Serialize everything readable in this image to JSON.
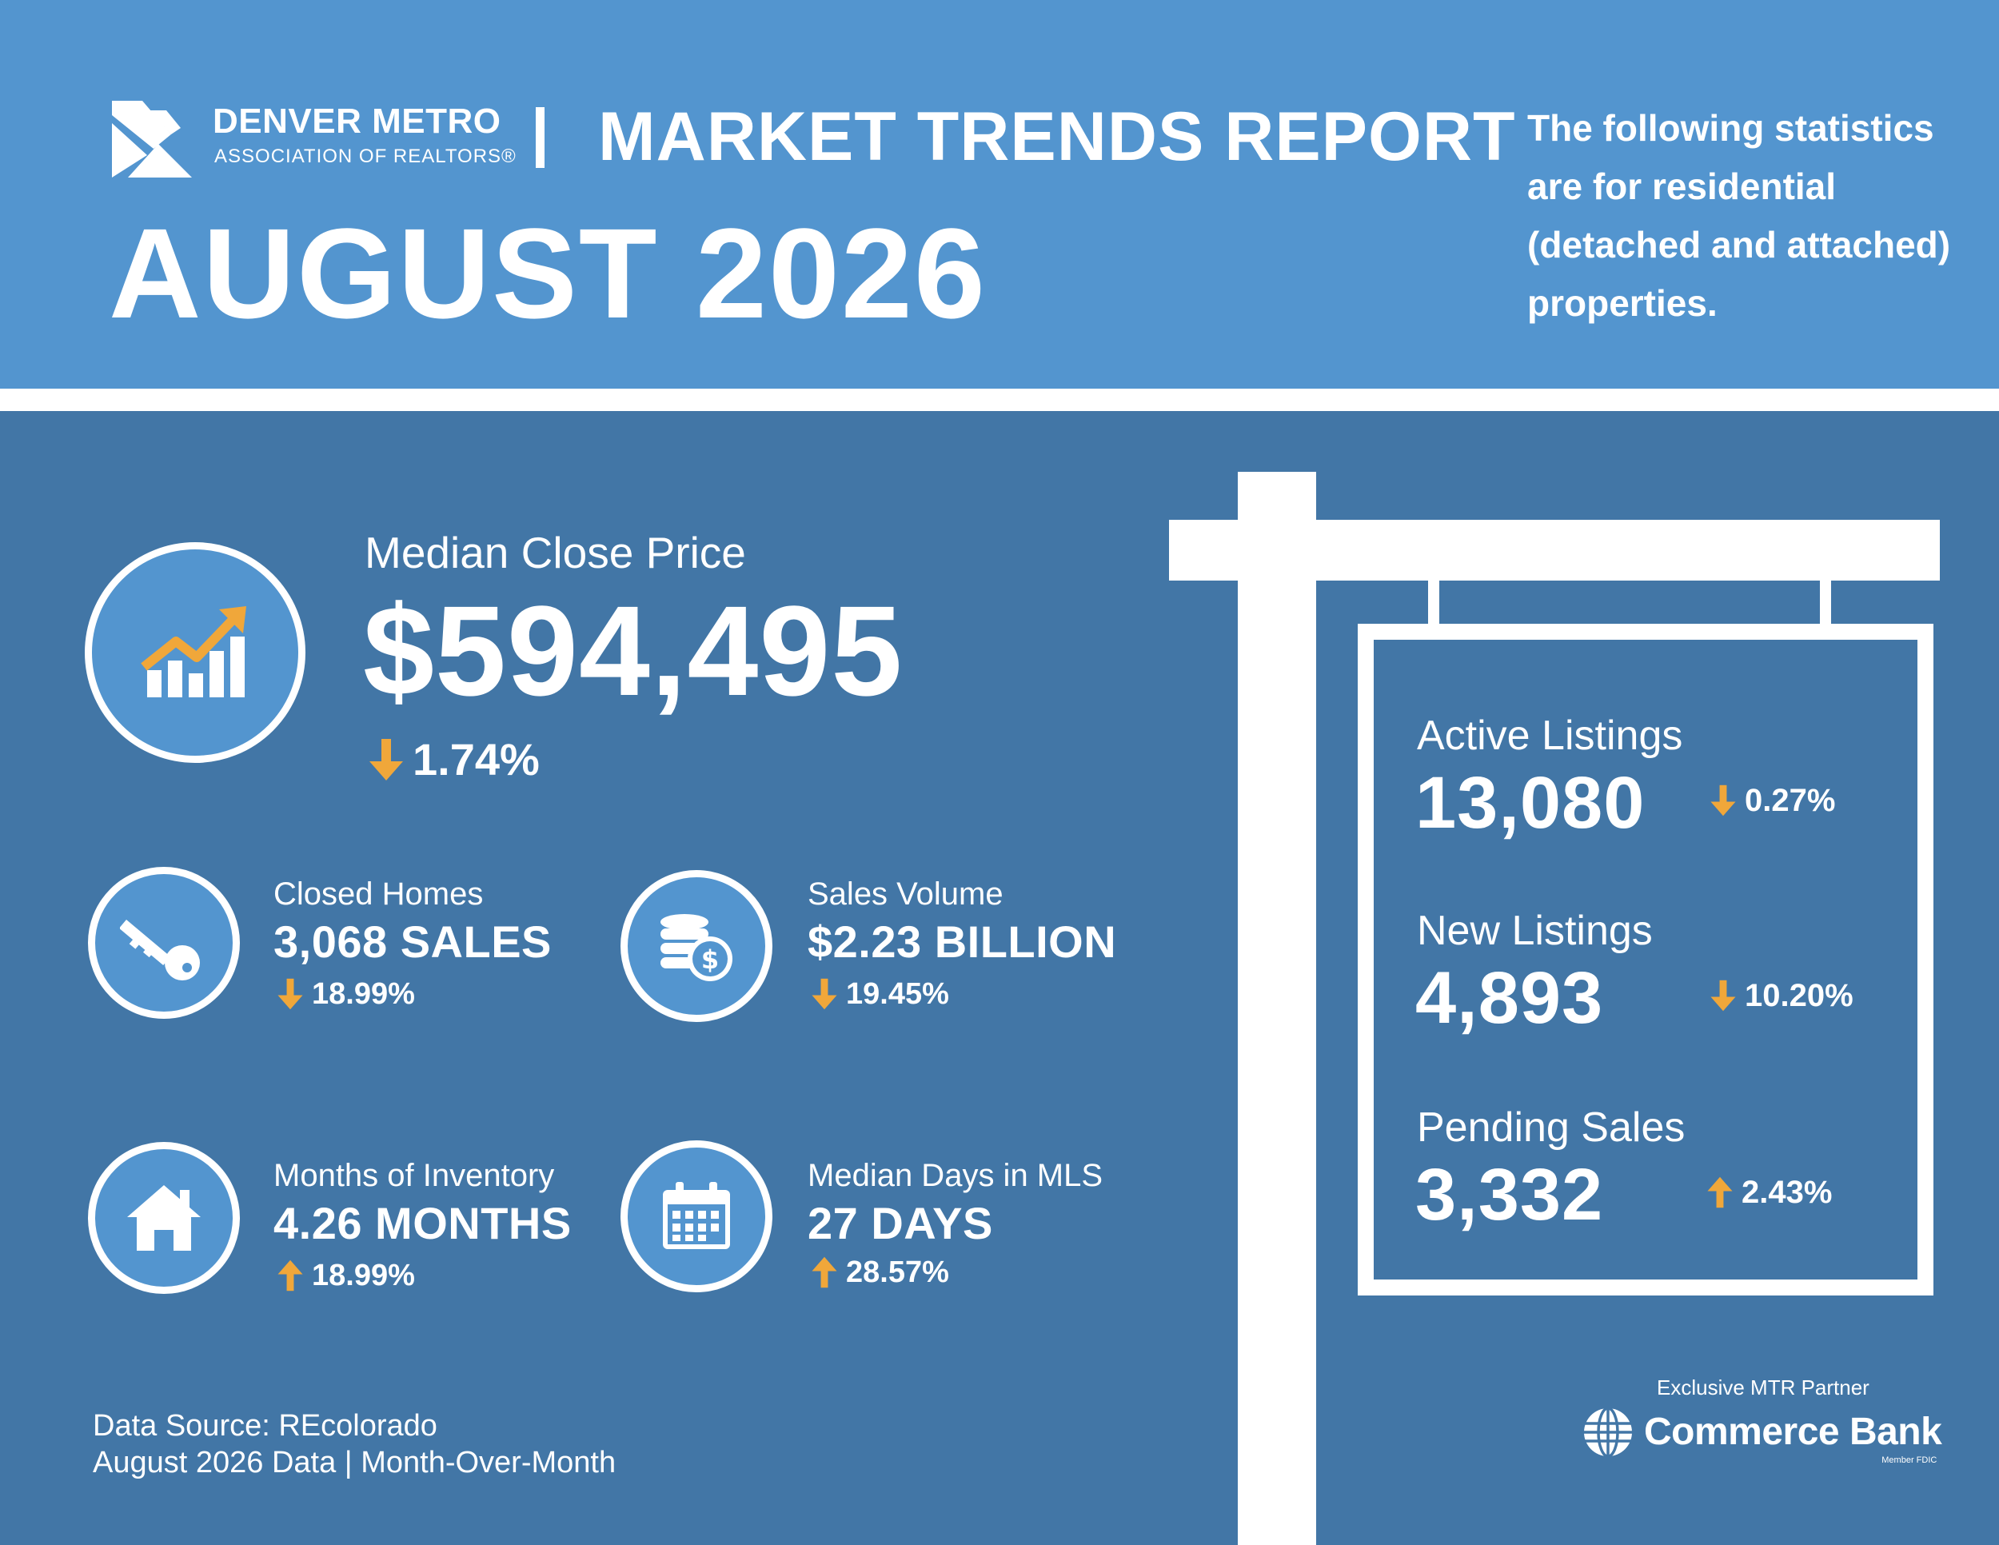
{
  "header": {
    "org_name": "DENVER METRO",
    "org_sub": "ASSOCIATION OF REALTORS®",
    "separator": "|",
    "report_title": "MARKET TRENDS REPORT",
    "month": "AUGUST 2026",
    "intro": "The following statistics are for residential (detached and attached) properties."
  },
  "colors": {
    "header_bg": "#5395cf",
    "main_bg": "#4276a6",
    "accent": "#f0a73a",
    "text": "#ffffff"
  },
  "median_close_price": {
    "label": "Median Close Price",
    "value": "$594,495",
    "change": "1.74%",
    "direction": "down",
    "icon": "chart-growth-icon"
  },
  "metrics": [
    {
      "label": "Closed Homes",
      "value": "3,068 SALES",
      "change": "18.99%",
      "direction": "down",
      "icon": "key-icon"
    },
    {
      "label": "Sales Volume",
      "value": "$2.23 BILLION",
      "change": "19.45%",
      "direction": "down",
      "icon": "coins-icon"
    },
    {
      "label": "Months of Inventory",
      "value": "4.26 MONTHS",
      "change": "18.99%",
      "direction": "up",
      "icon": "house-icon"
    },
    {
      "label": "Median Days in MLS",
      "value": "27 DAYS",
      "change": "28.57%",
      "direction": "up",
      "icon": "calendar-icon"
    }
  ],
  "sign": {
    "items": [
      {
        "label": "Active Listings",
        "value": "13,080",
        "change": "0.27%",
        "direction": "down"
      },
      {
        "label": "New Listings",
        "value": "4,893",
        "change": "10.20%",
        "direction": "down"
      },
      {
        "label": "Pending Sales",
        "value": "3,332",
        "change": "2.43%",
        "direction": "up"
      }
    ]
  },
  "footer": {
    "source_line1": "Data Source: REcolorado",
    "source_line2": "August 2026 Data | Month-Over-Month",
    "partner_label": "Exclusive MTR Partner",
    "partner_name": "Commerce Bank",
    "partner_fdic": "Member FDIC"
  }
}
